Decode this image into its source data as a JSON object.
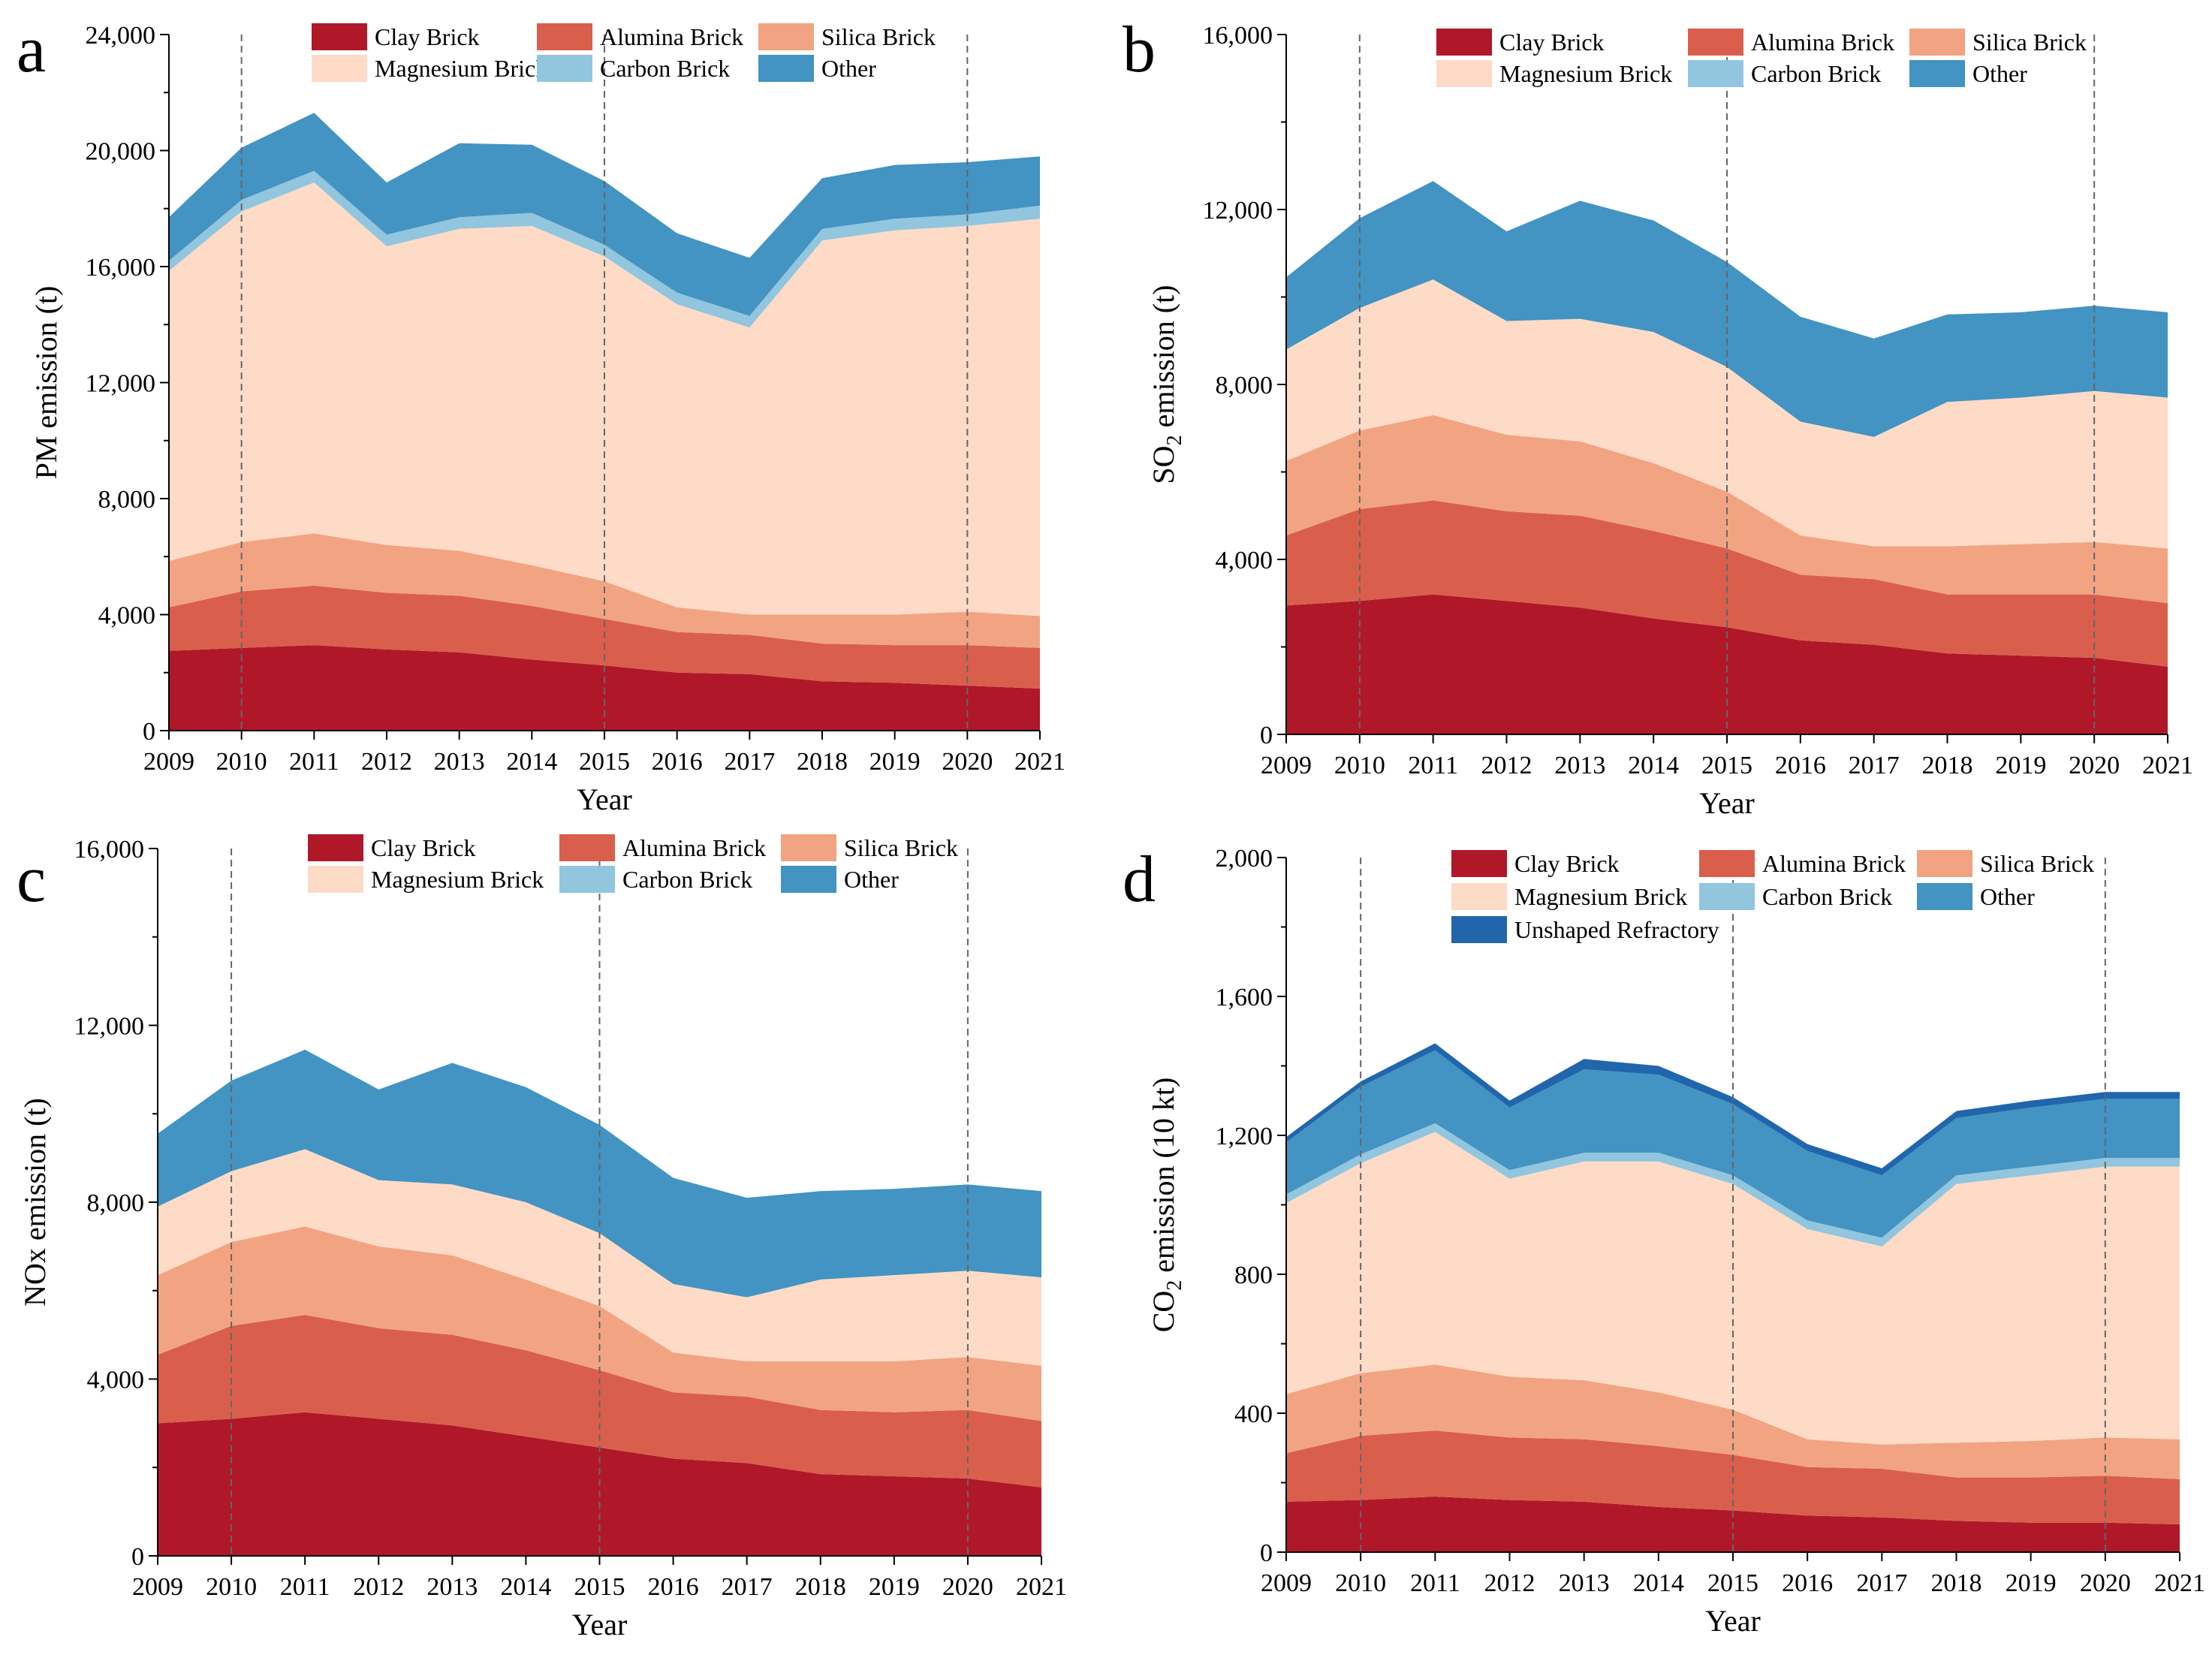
{
  "legend_names": {
    "clay": "Clay Brick",
    "alumina": "Alumina Brick",
    "silica": "Silica Brick",
    "magnesium": "Magnesium Brick",
    "carbon": "Carbon Brick",
    "other": "Other",
    "unshaped": "Unshaped Refractory"
  },
  "colors": {
    "clay": "#B0182A",
    "alumina": "#D95F4C",
    "silica": "#F2A482",
    "magnesium": "#FDDBC7",
    "carbon": "#92C5DE",
    "other": "#4393C3",
    "unshaped": "#2166AC",
    "vline": "#666666"
  },
  "chart_data": [
    {
      "type": "area",
      "stacked": true,
      "panel_label": "a",
      "xlabel": "Year",
      "ylabel": "PM emission (t)",
      "ylim": [
        0,
        24000
      ],
      "yticks": [
        0,
        4000,
        8000,
        12000,
        16000,
        20000,
        24000
      ],
      "ytick_labels": [
        "0",
        "4,000",
        "8,000",
        "12,000",
        "16,000",
        "20,000",
        "24,000"
      ],
      "x": [
        2009,
        2010,
        2011,
        2012,
        2013,
        2014,
        2015,
        2016,
        2017,
        2018,
        2019,
        2020,
        2021
      ],
      "xtick_labels": [
        "2009",
        "2010",
        "2011",
        "2012",
        "2013",
        "2014",
        "2015",
        "2016",
        "2017",
        "2018",
        "2019",
        "2020",
        "2021"
      ],
      "vlines": [
        2010,
        2015,
        2020
      ],
      "series": [
        {
          "key": "clay",
          "name": "Clay Brick",
          "values": [
            2750,
            2850,
            2950,
            2800,
            2700,
            2450,
            2250,
            2000,
            1950,
            1700,
            1650,
            1550,
            1450
          ]
        },
        {
          "key": "alumina",
          "name": "Alumina Brick",
          "values": [
            1500,
            1950,
            2050,
            1950,
            1950,
            1850,
            1600,
            1400,
            1350,
            1300,
            1300,
            1400,
            1400
          ]
        },
        {
          "key": "silica",
          "name": "Silica Brick",
          "values": [
            1600,
            1700,
            1800,
            1650,
            1550,
            1400,
            1300,
            850,
            700,
            1000,
            1050,
            1150,
            1100
          ]
        },
        {
          "key": "magnesium",
          "name": "Magnesium Brick",
          "values": [
            10000,
            11400,
            12100,
            10300,
            11100,
            11700,
            11200,
            10450,
            9900,
            12900,
            13250,
            13300,
            13700
          ]
        },
        {
          "key": "carbon",
          "name": "Carbon Brick",
          "values": [
            350,
            400,
            400,
            400,
            400,
            450,
            400,
            400,
            400,
            400,
            400,
            400,
            450
          ]
        },
        {
          "key": "other",
          "name": "Other",
          "values": [
            1500,
            1800,
            2000,
            1800,
            2550,
            2350,
            2200,
            2050,
            2000,
            1750,
            1850,
            1800,
            1700
          ]
        }
      ]
    },
    {
      "type": "area",
      "stacked": true,
      "panel_label": "b",
      "xlabel": "Year",
      "ylabel": "SO2 emission (t)",
      "ylabel_main": "SO",
      "ylabel_sub": "2",
      "ylabel_rest": " emission (t)",
      "ylim": [
        0,
        16000
      ],
      "yticks": [
        0,
        4000,
        8000,
        12000,
        16000
      ],
      "ytick_labels": [
        "0",
        "4,000",
        "8,000",
        "12,000",
        "16,000"
      ],
      "x": [
        2009,
        2010,
        2011,
        2012,
        2013,
        2014,
        2015,
        2016,
        2017,
        2018,
        2019,
        2020,
        2021
      ],
      "xtick_labels": [
        "2009",
        "2010",
        "2011",
        "2012",
        "2013",
        "2014",
        "2015",
        "2016",
        "2017",
        "2018",
        "2019",
        "2020",
        "2021"
      ],
      "vlines": [
        2010,
        2015,
        2020
      ],
      "series": [
        {
          "key": "clay",
          "name": "Clay Brick",
          "values": [
            2950,
            3050,
            3200,
            3050,
            2900,
            2650,
            2450,
            2150,
            2050,
            1850,
            1800,
            1750,
            1550
          ]
        },
        {
          "key": "alumina",
          "name": "Alumina Brick",
          "values": [
            1600,
            2100,
            2150,
            2050,
            2100,
            2000,
            1800,
            1500,
            1500,
            1350,
            1400,
            1450,
            1450
          ]
        },
        {
          "key": "silica",
          "name": "Silica Brick",
          "values": [
            1700,
            1800,
            1950,
            1750,
            1700,
            1550,
            1300,
            900,
            750,
            1100,
            1150,
            1200,
            1250
          ]
        },
        {
          "key": "magnesium",
          "name": "Magnesium Brick",
          "values": [
            2550,
            2800,
            3100,
            2600,
            2800,
            3000,
            2850,
            2600,
            2500,
            3300,
            3350,
            3450,
            3450
          ]
        },
        {
          "key": "carbon",
          "name": "Carbon Brick",
          "values": [
            0,
            0,
            0,
            0,
            0,
            0,
            0,
            0,
            0,
            0,
            0,
            0,
            0
          ]
        },
        {
          "key": "other",
          "name": "Other",
          "values": [
            1650,
            2050,
            2250,
            2050,
            2700,
            2550,
            2400,
            2400,
            2250,
            2000,
            1950,
            1950,
            1950
          ]
        }
      ]
    },
    {
      "type": "area",
      "stacked": true,
      "panel_label": "c",
      "xlabel": "Year",
      "ylabel": "NOx emission (t)",
      "ylim": [
        0,
        16000
      ],
      "yticks": [
        0,
        4000,
        8000,
        12000,
        16000
      ],
      "ytick_labels": [
        "0",
        "4,000",
        "8,000",
        "12,000",
        "16,000"
      ],
      "x": [
        2009,
        2010,
        2011,
        2012,
        2013,
        2014,
        2015,
        2016,
        2017,
        2018,
        2019,
        2020,
        2021
      ],
      "xtick_labels": [
        "2009",
        "2010",
        "2011",
        "2012",
        "2013",
        "2014",
        "2015",
        "2016",
        "2017",
        "2018",
        "2019",
        "2020",
        "2021"
      ],
      "vlines": [
        2010,
        2015,
        2020
      ],
      "series": [
        {
          "key": "clay",
          "name": "Clay Brick",
          "values": [
            3000,
            3100,
            3250,
            3100,
            2950,
            2700,
            2450,
            2200,
            2100,
            1850,
            1800,
            1750,
            1550
          ]
        },
        {
          "key": "alumina",
          "name": "Alumina Brick",
          "values": [
            1550,
            2100,
            2200,
            2050,
            2050,
            1950,
            1750,
            1500,
            1500,
            1450,
            1450,
            1550,
            1500
          ]
        },
        {
          "key": "silica",
          "name": "Silica Brick",
          "values": [
            1800,
            1900,
            2000,
            1850,
            1800,
            1600,
            1450,
            900,
            800,
            1100,
            1150,
            1200,
            1250
          ]
        },
        {
          "key": "magnesium",
          "name": "Magnesium Brick",
          "values": [
            1550,
            1600,
            1750,
            1500,
            1600,
            1750,
            1650,
            1550,
            1450,
            1850,
            1950,
            1950,
            2000
          ]
        },
        {
          "key": "carbon",
          "name": "Carbon Brick",
          "values": [
            0,
            0,
            0,
            0,
            0,
            0,
            0,
            0,
            0,
            0,
            0,
            0,
            0
          ]
        },
        {
          "key": "other",
          "name": "Other",
          "values": [
            1650,
            2050,
            2250,
            2050,
            2750,
            2600,
            2450,
            2400,
            2250,
            2000,
            1950,
            1950,
            1950
          ]
        }
      ]
    },
    {
      "type": "area",
      "stacked": true,
      "panel_label": "d",
      "xlabel": "Year",
      "ylabel": "CO2 emission (10 kt)",
      "ylabel_main": "CO",
      "ylabel_sub": "2",
      "ylabel_rest": " emission (10 kt)",
      "ylim": [
        0,
        2000
      ],
      "yticks": [
        0,
        400,
        800,
        1200,
        1600,
        2000
      ],
      "ytick_labels": [
        "0",
        "400",
        "800",
        "1,200",
        "1,600",
        "2,000"
      ],
      "x": [
        2009,
        2010,
        2011,
        2012,
        2013,
        2014,
        2015,
        2016,
        2017,
        2018,
        2019,
        2020,
        2021
      ],
      "xtick_labels": [
        "2009",
        "2010",
        "2011",
        "2012",
        "2013",
        "2014",
        "2015",
        "2016",
        "2017",
        "2018",
        "2019",
        "2020",
        "2021"
      ],
      "vlines": [
        2010,
        2015,
        2020
      ],
      "series": [
        {
          "key": "clay",
          "name": "Clay Brick",
          "values": [
            145,
            150,
            160,
            150,
            145,
            130,
            120,
            105,
            100,
            90,
            85,
            85,
            80
          ]
        },
        {
          "key": "alumina",
          "name": "Alumina Brick",
          "values": [
            140,
            185,
            190,
            180,
            180,
            175,
            160,
            140,
            140,
            125,
            130,
            135,
            130
          ]
        },
        {
          "key": "silica",
          "name": "Silica Brick",
          "values": [
            170,
            180,
            190,
            175,
            170,
            155,
            130,
            80,
            70,
            100,
            105,
            110,
            115
          ]
        },
        {
          "key": "magnesium",
          "name": "Magnesium Brick",
          "values": [
            550,
            605,
            670,
            570,
            630,
            665,
            650,
            605,
            570,
            745,
            765,
            780,
            785
          ]
        },
        {
          "key": "carbon",
          "name": "Carbon Brick",
          "values": [
            25,
            25,
            25,
            25,
            25,
            25,
            25,
            25,
            25,
            25,
            25,
            25,
            25
          ]
        },
        {
          "key": "other",
          "name": "Other",
          "values": [
            150,
            195,
            210,
            180,
            240,
            225,
            205,
            200,
            180,
            165,
            170,
            170,
            170
          ]
        },
        {
          "key": "unshaped",
          "name": "Unshaped Refractory",
          "values": [
            15,
            15,
            20,
            20,
            30,
            25,
            20,
            20,
            20,
            20,
            20,
            20,
            20
          ]
        }
      ]
    }
  ]
}
